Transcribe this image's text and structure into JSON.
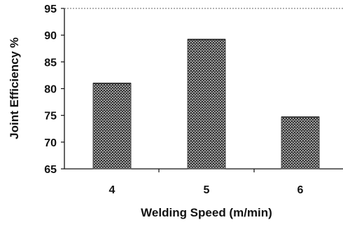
{
  "chart_data": {
    "type": "bar",
    "categories": [
      "4",
      "5",
      "6"
    ],
    "values": [
      81,
      89.2,
      74.7
    ],
    "xlabel": "Welding Speed (m/min)",
    "ylabel": "Joint Efficiency %",
    "ylim": [
      65,
      95
    ],
    "yticks": [
      "65",
      "70",
      "75",
      "80",
      "85",
      "90",
      "95"
    ],
    "grid": false,
    "legend": "none",
    "bar_color": "#4a4a4a",
    "axis_color": "#111111"
  }
}
